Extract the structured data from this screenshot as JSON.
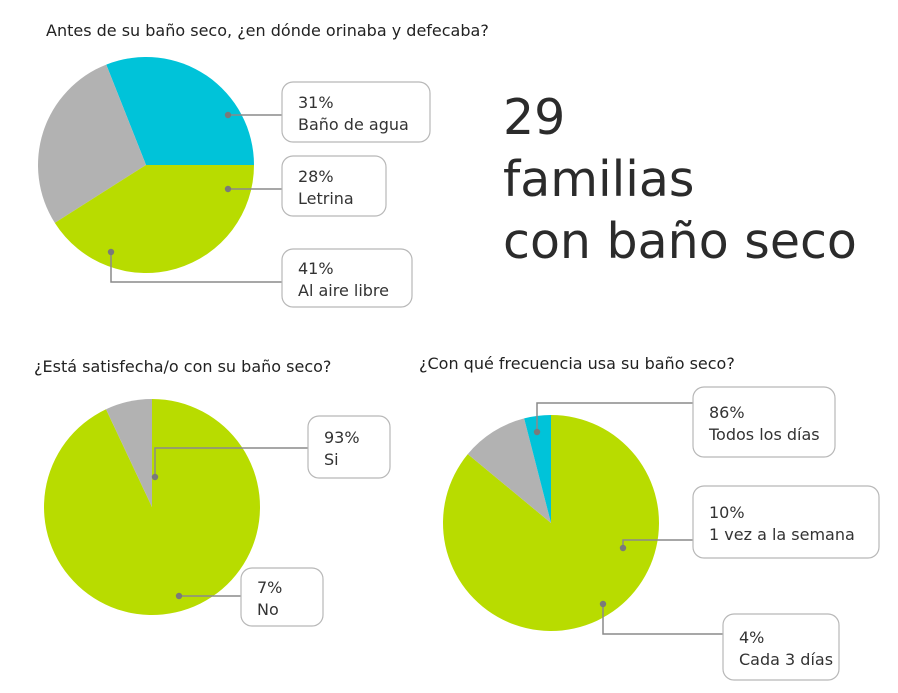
{
  "headline": {
    "line1": "29",
    "line2": "familias",
    "line3": "con baño seco"
  },
  "chart_data": [
    {
      "type": "pie",
      "title": "Antes de su baño seco, ¿en dónde orinaba y defecaba?",
      "slices": [
        {
          "label": "Baño de agua",
          "value": 31,
          "value_text": "31%",
          "color": "#00c3d9"
        },
        {
          "label": "Letrina",
          "value": 28,
          "value_text": "28%",
          "color": "#b2b2b2"
        },
        {
          "label": "Al aire libre",
          "value": 41,
          "value_text": "41%",
          "color": "#b8dc00"
        }
      ]
    },
    {
      "type": "pie",
      "title": "¿Está satisfecha/o con su baño seco?",
      "slices": [
        {
          "label": "Si",
          "value": 93,
          "value_text": "93%",
          "color": "#b8dc00"
        },
        {
          "label": "No",
          "value": 7,
          "value_text": "7%",
          "color": "#b2b2b2"
        }
      ]
    },
    {
      "type": "pie",
      "title": "¿Con qué frecuencia usa su baño seco?",
      "slices": [
        {
          "label": "Todos los días",
          "value": 86,
          "value_text": "86%",
          "color": "#b8dc00"
        },
        {
          "label": "1 vez a la semana",
          "value": 10,
          "value_text": "10%",
          "color": "#b2b2b2"
        },
        {
          "label": "Cada 3 días",
          "value": 4,
          "value_text": "4%",
          "color": "#00c3d9"
        }
      ]
    }
  ]
}
